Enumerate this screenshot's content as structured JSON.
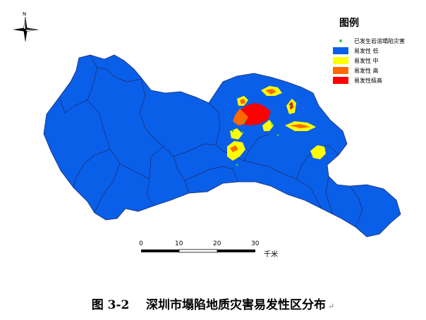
{
  "legend": {
    "title": "图例",
    "items": [
      {
        "label": "已发生岩溶塌陷灾害",
        "kind": "dot",
        "color": "#2ecc40"
      },
      {
        "label": "易发性 低",
        "kind": "swatch",
        "color": "#0a5fe8"
      },
      {
        "label": "易发性 中",
        "kind": "swatch",
        "color": "#ffff00"
      },
      {
        "label": "易发性 高",
        "kind": "swatch",
        "color": "#ff6a00"
      },
      {
        "label": "易发性极高",
        "kind": "swatch",
        "color": "#ff0000"
      }
    ]
  },
  "scale_bar": {
    "ticks": [
      "0",
      "10",
      "20",
      "30"
    ],
    "unit": "千米"
  },
  "north_arrow": {
    "label": "N",
    "icon": "compass-rose-icon"
  },
  "caption": {
    "text": "图 3-2    深圳市塌陷地质灾害易发性区分布",
    "return_mark": "↵"
  },
  "colors": {
    "low": "#0a5fe8",
    "medium": "#ffff00",
    "high": "#ff6a00",
    "very_high": "#ff0000",
    "occurred": "#2ecc40",
    "boundary": "#1a2a6c"
  }
}
